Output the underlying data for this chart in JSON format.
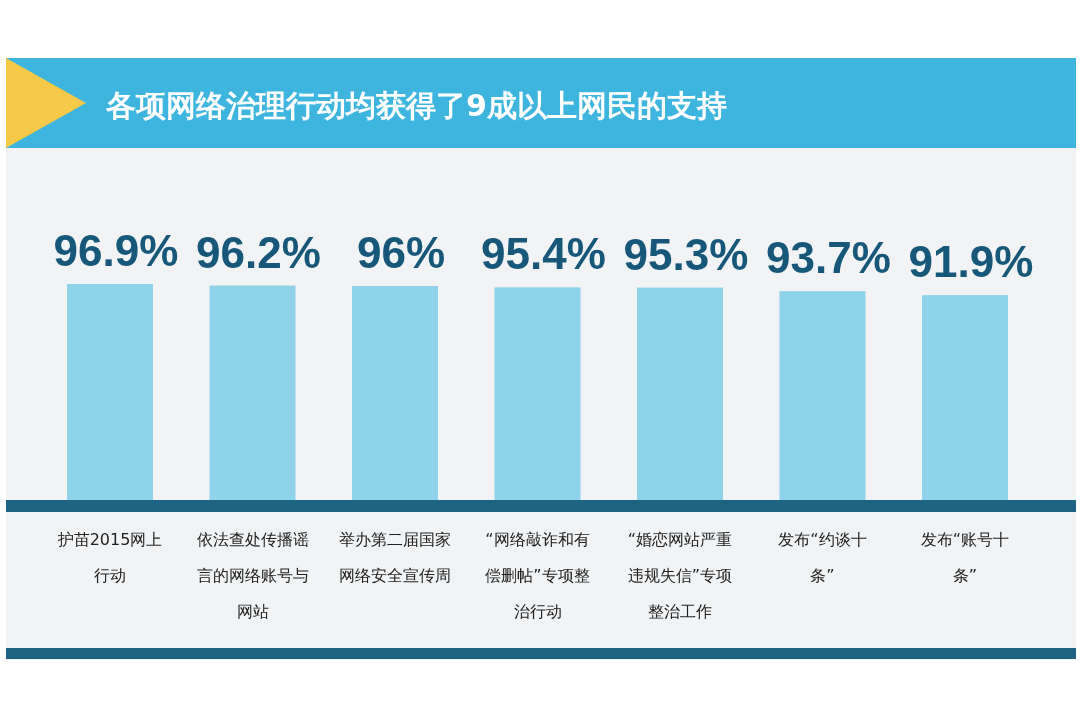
{
  "chart_data": {
    "type": "bar",
    "title": "各项网络治理行动均获得了9成以上网民的支持",
    "categories": [
      "护苗2015网上行动",
      "依法查处传播谣言的网络账号与网站",
      "举办第二届国家网络安全宣传周",
      "“网络敲诈和有偿删帖”专项整治行动",
      "“婚恋网站严重违规失信”专项整治工作",
      "发布“约谈十条”",
      "发布“账号十条”"
    ],
    "values": [
      96.9,
      96.2,
      96,
      95.4,
      95.3,
      93.7,
      91.9
    ],
    "value_labels": [
      "96.9%",
      "96.2%",
      "96%",
      "95.4%",
      "95.3%",
      "93.7%",
      "91.9%"
    ],
    "color": "#8fd3ea"
  }
}
